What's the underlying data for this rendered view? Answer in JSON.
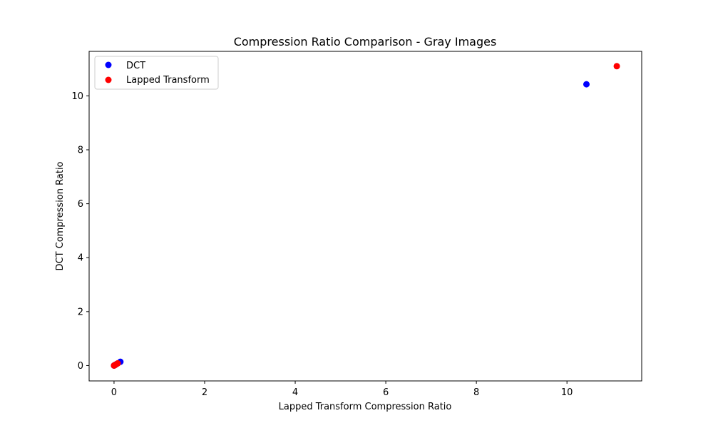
{
  "chart_data": {
    "type": "scatter",
    "title": "Compression Ratio Comparison - Gray Images",
    "xlabel": "Lapped Transform Compression Ratio",
    "ylabel": "DCT Compression Ratio",
    "xlim": [
      -0.55,
      11.65
    ],
    "ylim": [
      -0.57,
      11.65
    ],
    "xticks": [
      0,
      2,
      4,
      6,
      8,
      10
    ],
    "yticks": [
      0,
      2,
      4,
      6,
      8,
      10
    ],
    "grid": false,
    "legend_position": "upper-left",
    "series": [
      {
        "name": "DCT",
        "color": "#0000ff",
        "points": [
          {
            "x": 0.0,
            "y": 0.0
          },
          {
            "x": 0.01,
            "y": 0.01
          },
          {
            "x": 0.02,
            "y": 0.02
          },
          {
            "x": 0.05,
            "y": 0.05
          },
          {
            "x": 0.14,
            "y": 0.14
          },
          {
            "x": 10.43,
            "y": 10.43
          }
        ]
      },
      {
        "name": "Lapped Transform",
        "color": "#ff0000",
        "points": [
          {
            "x": 0.0,
            "y": 0.0
          },
          {
            "x": 0.01,
            "y": 0.01
          },
          {
            "x": 0.02,
            "y": 0.02
          },
          {
            "x": 0.03,
            "y": 0.03
          },
          {
            "x": 0.08,
            "y": 0.08
          },
          {
            "x": 11.1,
            "y": 11.1
          }
        ]
      }
    ]
  }
}
